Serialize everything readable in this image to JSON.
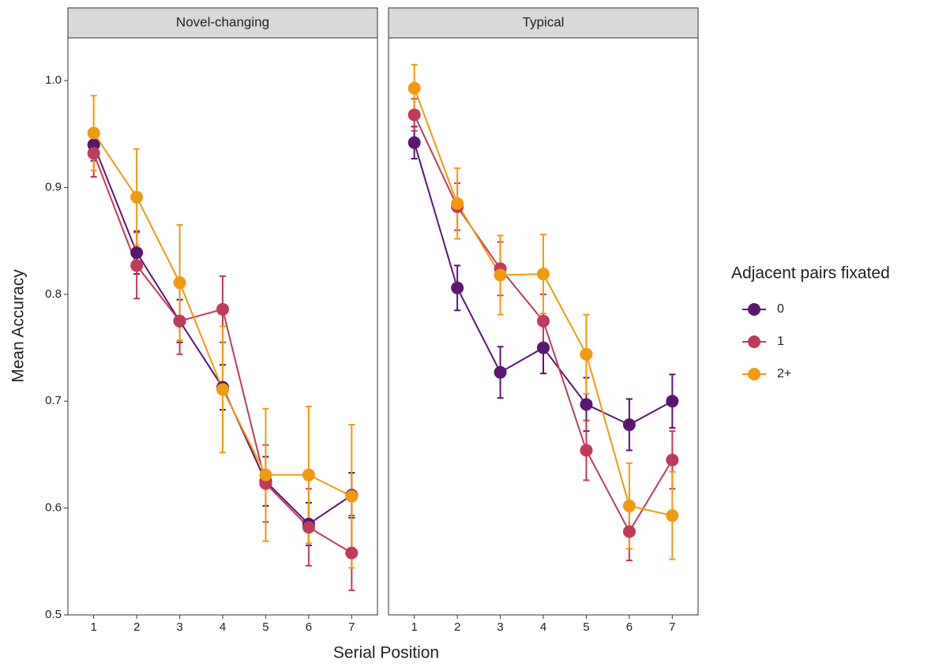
{
  "chart_data": {
    "type": "line",
    "panels": [
      "Novel-changing",
      "Typical"
    ],
    "x_label": "Serial Position",
    "y_label": "Mean Accuracy",
    "legend_title": "Adjacent pairs fixated",
    "x": [
      1,
      2,
      3,
      4,
      5,
      6,
      7
    ],
    "xlim": [
      0.4,
      7.6
    ],
    "xticks": [
      1,
      2,
      3,
      4,
      5,
      6,
      7
    ],
    "ylim": [
      0.5,
      1.04
    ],
    "yticks": [
      {
        "value": 0.5,
        "label": "0.5"
      },
      {
        "value": 0.6,
        "label": "0.6"
      },
      {
        "value": 0.7,
        "label": "0.7"
      },
      {
        "value": 0.8,
        "label": "0.8"
      },
      {
        "value": 0.9,
        "label": "0.9"
      },
      {
        "value": 1.0,
        "label": "1.0"
      }
    ],
    "series": [
      {
        "name": "0",
        "color": "#5a1670",
        "values": [
          [
            0.94,
            0.839,
            0.775,
            0.713,
            0.625,
            0.585,
            0.612
          ],
          [
            0.942,
            0.806,
            0.727,
            0.75,
            0.697,
            0.678,
            0.7
          ]
        ],
        "errors": [
          [
            0.015,
            0.02,
            0.02,
            0.021,
            0.023,
            0.02,
            0.021
          ],
          [
            0.015,
            0.021,
            0.024,
            0.024,
            0.025,
            0.024,
            0.025
          ]
        ]
      },
      {
        "name": "1",
        "color": "#c23a5b",
        "values": [
          [
            0.932,
            0.827,
            0.775,
            0.786,
            0.623,
            0.582,
            0.558
          ],
          [
            0.968,
            0.882,
            0.824,
            0.775,
            0.654,
            0.578,
            0.645
          ]
        ],
        "errors": [
          [
            0.022,
            0.031,
            0.031,
            0.031,
            0.036,
            0.036,
            0.035
          ],
          [
            0.015,
            0.022,
            0.025,
            0.025,
            0.028,
            0.027,
            0.027
          ]
        ]
      },
      {
        "name": "2+",
        "color": "#f2990e",
        "values": [
          [
            0.951,
            0.891,
            0.811,
            0.711,
            0.631,
            0.631,
            0.611
          ],
          [
            0.993,
            0.885,
            0.818,
            0.819,
            0.744,
            0.602,
            0.593
          ]
        ],
        "errors": [
          [
            0.035,
            0.045,
            0.054,
            0.059,
            0.062,
            0.064,
            0.067
          ],
          [
            0.022,
            0.033,
            0.037,
            0.037,
            0.037,
            0.04,
            0.041
          ]
        ]
      }
    ]
  }
}
